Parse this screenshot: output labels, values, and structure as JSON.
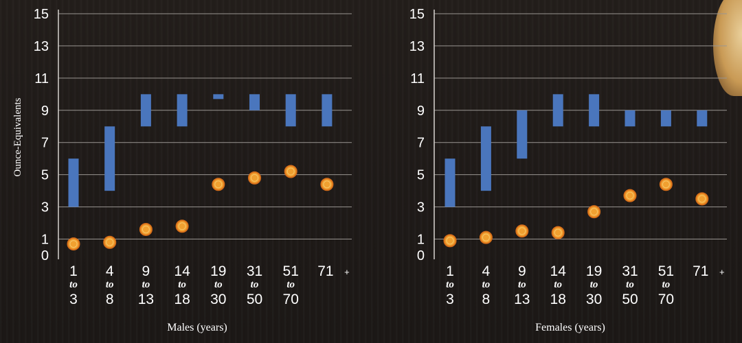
{
  "chart_data": [
    {
      "type": "range-and-dot",
      "xlabel": "Males (years)",
      "ylabel": "Ounce-Equivalents",
      "ylim": [
        0,
        15
      ],
      "yticks": [
        0,
        1,
        3,
        5,
        7,
        9,
        11,
        13,
        15
      ],
      "grid": true,
      "categories": [
        {
          "from": "1",
          "to": "3"
        },
        {
          "from": "4",
          "to": "8"
        },
        {
          "from": "9",
          "to": "13"
        },
        {
          "from": "14",
          "to": "18"
        },
        {
          "from": "19",
          "to": "30"
        },
        {
          "from": "31",
          "to": "50"
        },
        {
          "from": "51",
          "to": "70"
        },
        {
          "from": "71",
          "to": "+"
        }
      ],
      "to_word": "to",
      "recommended_range": [
        [
          3,
          6
        ],
        [
          4,
          8
        ],
        [
          8,
          10
        ],
        [
          8,
          10
        ],
        [
          9.7,
          10
        ],
        [
          9,
          10
        ],
        [
          8,
          10
        ],
        [
          8,
          10
        ]
      ],
      "usual_intake": [
        0.7,
        0.8,
        1.6,
        1.8,
        4.4,
        4.8,
        5.2,
        4.4
      ]
    },
    {
      "type": "range-and-dot",
      "xlabel": "Females (years)",
      "ylabel": "",
      "ylim": [
        0,
        15
      ],
      "yticks": [
        0,
        1,
        3,
        5,
        7,
        9,
        11,
        13,
        15
      ],
      "grid": true,
      "categories": [
        {
          "from": "1",
          "to": "3"
        },
        {
          "from": "4",
          "to": "8"
        },
        {
          "from": "9",
          "to": "13"
        },
        {
          "from": "14",
          "to": "18"
        },
        {
          "from": "19",
          "to": "30"
        },
        {
          "from": "31",
          "to": "50"
        },
        {
          "from": "51",
          "to": "70"
        },
        {
          "from": "71",
          "to": "+"
        }
      ],
      "to_word": "to",
      "recommended_range": [
        [
          3,
          6
        ],
        [
          4,
          8
        ],
        [
          6,
          9
        ],
        [
          8,
          10
        ],
        [
          8,
          10
        ],
        [
          8,
          9
        ],
        [
          8,
          9
        ],
        [
          8,
          9
        ]
      ],
      "usual_intake": [
        0.9,
        1.1,
        1.5,
        1.4,
        2.7,
        3.7,
        4.4,
        3.5
      ]
    }
  ],
  "colors": {
    "range_bar": "#4a76bd",
    "dot_fill": "#f0a030",
    "dot_ring": "#d9701a",
    "gridline": "#9a9692",
    "text": "#ffffff"
  }
}
